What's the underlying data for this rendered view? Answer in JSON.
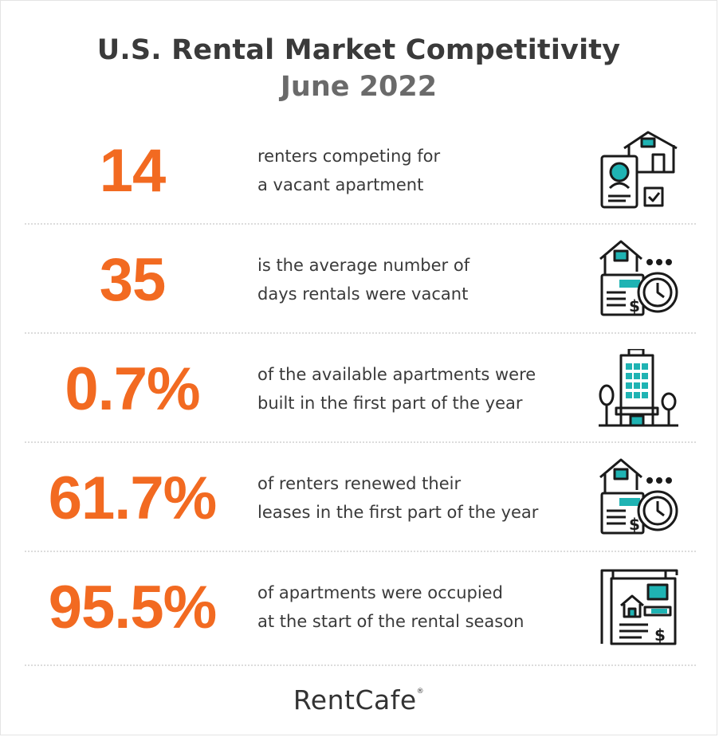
{
  "header": {
    "title": "U.S. Rental Market Competitivity",
    "subtitle": "June 2022"
  },
  "stats": [
    {
      "value": "14",
      "line1": "renters competing for",
      "line2": "a vacant apartment",
      "icon": "applicant-house-icon"
    },
    {
      "value": "35",
      "line1": "is the average number of",
      "line2": "days rentals were vacant",
      "icon": "house-timer-icon"
    },
    {
      "value": "0.7%",
      "line1": "of the available apartments were",
      "line2": "built in the first part of the year",
      "icon": "apartment-building-icon"
    },
    {
      "value": "61.7%",
      "line1": "of renters renewed their",
      "line2": "leases in the first part of the year",
      "icon": "house-timer-icon"
    },
    {
      "value": "95.5%",
      "line1": "of apartments were occupied",
      "line2": "at the start of the rental season",
      "icon": "rent-sign-icon"
    }
  ],
  "footer": {
    "logo": "RentCafe",
    "mark": "®"
  },
  "colors": {
    "accent": "#f26a21",
    "icon_teal": "#1fb3b3",
    "text": "#3a3a3a"
  }
}
